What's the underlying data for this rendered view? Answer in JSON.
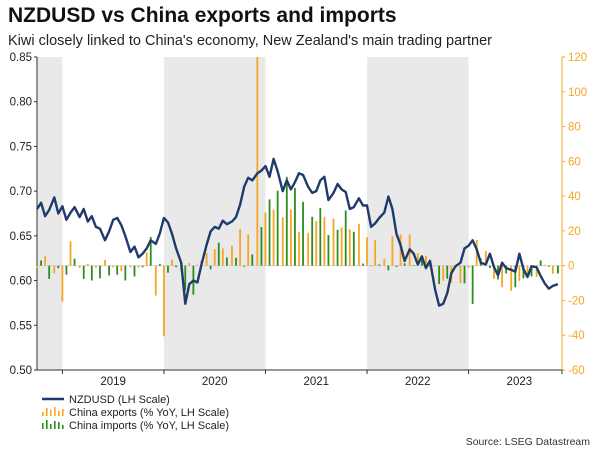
{
  "header": {
    "title": "NZDUSD vs China exports and imports",
    "subtitle": "Kiwi closely linked to China's economy, New Zealand's main trading partner"
  },
  "footer": {
    "source": "Source: LSEG Datastream"
  },
  "colors": {
    "nzdusd": "#1f3a6b",
    "exports": "#f5a623",
    "imports": "#2e8b1e",
    "shade": "#e9e9e9",
    "right_axis": "#f5a623"
  },
  "chart_data": {
    "type": "line+bar",
    "title": "NZDUSD vs China exports and imports",
    "x_tick_labels": [
      "2019",
      "2020",
      "2021",
      "2022",
      "2023"
    ],
    "x_range": [
      2018.75,
      2023.92
    ],
    "shaded_years": [
      2018.75,
      2020,
      2022
    ],
    "left_axis": {
      "ylim": [
        0.5,
        0.85
      ],
      "ticks": [
        "0.50",
        "0.55",
        "0.60",
        "0.65",
        "0.70",
        "0.75",
        "0.80",
        "0.85"
      ]
    },
    "right_axis": {
      "ylim": [
        -60,
        120
      ],
      "ticks": [
        "-60",
        "-40",
        "-20",
        "0",
        "20",
        "40",
        "60",
        "80",
        "100",
        "120"
      ]
    },
    "legend": [
      "NZDUSD (LH Scale)",
      "China exports (% YoY, LH Scale)",
      "China imports (% YoY, LH Scale)"
    ],
    "legend_position": "bottom-left",
    "nzdusd": {
      "name": "NZDUSD (LH Scale)",
      "x": [
        2018.75,
        2018.79,
        2018.83,
        2018.87,
        2018.92,
        2018.96,
        2019.0,
        2019.04,
        2019.08,
        2019.12,
        2019.17,
        2019.21,
        2019.25,
        2019.29,
        2019.33,
        2019.37,
        2019.42,
        2019.46,
        2019.5,
        2019.54,
        2019.58,
        2019.62,
        2019.67,
        2019.71,
        2019.75,
        2019.79,
        2019.83,
        2019.87,
        2019.92,
        2019.96,
        2020.0,
        2020.04,
        2020.08,
        2020.12,
        2020.17,
        2020.21,
        2020.25,
        2020.29,
        2020.33,
        2020.37,
        2020.42,
        2020.46,
        2020.5,
        2020.54,
        2020.58,
        2020.62,
        2020.67,
        2020.71,
        2020.75,
        2020.79,
        2020.83,
        2020.87,
        2020.92,
        2020.96,
        2021.0,
        2021.04,
        2021.08,
        2021.12,
        2021.17,
        2021.21,
        2021.25,
        2021.29,
        2021.33,
        2021.37,
        2021.42,
        2021.46,
        2021.5,
        2021.54,
        2021.58,
        2021.62,
        2021.67,
        2021.71,
        2021.75,
        2021.79,
        2021.83,
        2021.87,
        2021.92,
        2021.96,
        2022.0,
        2022.04,
        2022.08,
        2022.12,
        2022.17,
        2022.21,
        2022.25,
        2022.29,
        2022.33,
        2022.37,
        2022.42,
        2022.46,
        2022.5,
        2022.54,
        2022.58,
        2022.62,
        2022.67,
        2022.71,
        2022.75,
        2022.79,
        2022.83,
        2022.87,
        2022.92,
        2022.96,
        2023.0,
        2023.04,
        2023.08,
        2023.12,
        2023.17,
        2023.21,
        2023.25,
        2023.29,
        2023.33,
        2023.37,
        2023.42,
        2023.46,
        2023.5,
        2023.54,
        2023.58,
        2023.62,
        2023.67,
        2023.71,
        2023.75,
        2023.79,
        2023.83,
        2023.88
      ],
      "values": [
        0.68,
        0.687,
        0.672,
        0.679,
        0.693,
        0.675,
        0.683,
        0.668,
        0.676,
        0.682,
        0.671,
        0.68,
        0.666,
        0.672,
        0.66,
        0.658,
        0.645,
        0.655,
        0.668,
        0.67,
        0.662,
        0.65,
        0.632,
        0.638,
        0.626,
        0.63,
        0.636,
        0.645,
        0.641,
        0.653,
        0.67,
        0.665,
        0.652,
        0.636,
        0.62,
        0.574,
        0.596,
        0.6,
        0.598,
        0.618,
        0.64,
        0.655,
        0.66,
        0.658,
        0.667,
        0.663,
        0.666,
        0.671,
        0.685,
        0.705,
        0.715,
        0.712,
        0.72,
        0.723,
        0.728,
        0.716,
        0.736,
        0.722,
        0.7,
        0.712,
        0.702,
        0.71,
        0.72,
        0.718,
        0.705,
        0.698,
        0.7,
        0.712,
        0.716,
        0.69,
        0.698,
        0.708,
        0.702,
        0.699,
        0.68,
        0.682,
        0.692,
        0.684,
        0.684,
        0.66,
        0.664,
        0.67,
        0.676,
        0.694,
        0.68,
        0.652,
        0.64,
        0.622,
        0.635,
        0.63,
        0.618,
        0.627,
        0.614,
        0.622,
        0.59,
        0.572,
        0.574,
        0.586,
        0.608,
        0.616,
        0.62,
        0.636,
        0.639,
        0.645,
        0.635,
        0.62,
        0.618,
        0.63,
        0.615,
        0.606,
        0.62,
        0.614,
        0.612,
        0.61,
        0.63,
        0.613,
        0.604,
        0.616,
        0.615,
        0.605,
        0.597,
        0.591,
        0.594,
        0.596
      ]
    },
    "exports": {
      "name": "China exports (% YoY, LH Scale)",
      "x": [
        2018.75,
        2018.83,
        2018.92,
        2019.0,
        2019.08,
        2019.17,
        2019.25,
        2019.33,
        2019.42,
        2019.5,
        2019.58,
        2019.67,
        2019.75,
        2019.83,
        2019.92,
        2020.0,
        2020.08,
        2020.17,
        2020.25,
        2020.33,
        2020.42,
        2020.5,
        2020.58,
        2020.67,
        2020.75,
        2020.83,
        2020.92,
        2021.0,
        2021.08,
        2021.17,
        2021.25,
        2021.33,
        2021.42,
        2021.5,
        2021.58,
        2021.67,
        2021.75,
        2021.83,
        2021.92,
        2022.0,
        2022.08,
        2022.17,
        2022.25,
        2022.33,
        2022.42,
        2022.5,
        2022.58,
        2022.67,
        2022.75,
        2022.83,
        2022.92,
        2023.0,
        2023.08,
        2023.17,
        2023.25,
        2023.33,
        2023.42,
        2023.5,
        2023.58,
        2023.67,
        2023.75,
        2023.83
      ],
      "values": [
        -1.5,
        5.4,
        -4.4,
        -20.7,
        14.0,
        -1.3,
        1.1,
        -1.3,
        3.3,
        -1.0,
        -3.2,
        -0.9,
        -1.1,
        7.6,
        -17.2,
        -40.6,
        3.5,
        -3.3,
        1.4,
        0.5,
        7.2,
        9.5,
        9.9,
        11.4,
        21.1,
        18.1,
        154.9,
        30.6,
        32.3,
        27.9,
        32.2,
        19.3,
        18.9,
        25.6,
        28.1,
        27.1,
        22.0,
        20.9,
        24.1,
        16.3,
        14.7,
        3.9,
        16.9,
        17.9,
        18.0,
        7.1,
        5.7,
        -0.3,
        -8.7,
        -9.9,
        -10.0,
        -1.3,
        14.8,
        8.5,
        -7.5,
        -12.4,
        -14.5,
        -8.8,
        -6.2,
        -6.4,
        0.5,
        -4.6
      ]
    },
    "imports": {
      "name": "China imports (% YoY, LH Scale)",
      "x": [
        2018.79,
        2018.87,
        2018.96,
        2019.04,
        2019.12,
        2019.21,
        2019.29,
        2019.37,
        2019.46,
        2019.54,
        2019.62,
        2019.71,
        2019.79,
        2019.87,
        2019.96,
        2020.04,
        2020.12,
        2020.21,
        2020.29,
        2020.37,
        2020.46,
        2020.54,
        2020.62,
        2020.71,
        2020.79,
        2020.87,
        2020.96,
        2021.04,
        2021.12,
        2021.21,
        2021.29,
        2021.37,
        2021.46,
        2021.54,
        2021.62,
        2021.71,
        2021.79,
        2021.87,
        2021.96,
        2022.04,
        2022.12,
        2022.21,
        2022.29,
        2022.37,
        2022.46,
        2022.54,
        2022.62,
        2022.71,
        2022.79,
        2022.87,
        2022.96,
        2023.04,
        2023.12,
        2023.21,
        2023.29,
        2023.37,
        2023.46,
        2023.54,
        2023.62,
        2023.71,
        2023.79,
        2023.88
      ],
      "values": [
        3.0,
        -7.6,
        -1.5,
        -5.2,
        4.0,
        -7.6,
        -8.5,
        -7.3,
        -5.6,
        -5.2,
        -8.5,
        -6.2,
        -0.9,
        16.5,
        0.9,
        -4.0,
        -0.9,
        -14.2,
        -16.7,
        2.7,
        -2.1,
        13.2,
        4.7,
        4.5,
        -0.6,
        6.5,
        22.2,
        38.1,
        43.1,
        51.1,
        44.7,
        36.7,
        28.1,
        33.1,
        17.6,
        20.6,
        31.7,
        19.5,
        1.2,
        -0.1,
        0.7,
        -2.7,
        -0.7,
        1.4,
        0.3,
        5.3,
        -0.6,
        -10.6,
        -7.5,
        -1.3,
        -10.2,
        -22.0,
        4.2,
        -1.4,
        -7.9,
        -4.5,
        -12.4,
        -7.3,
        -6.2,
        3.0,
        -0.6,
        -4.5
      ]
    }
  }
}
